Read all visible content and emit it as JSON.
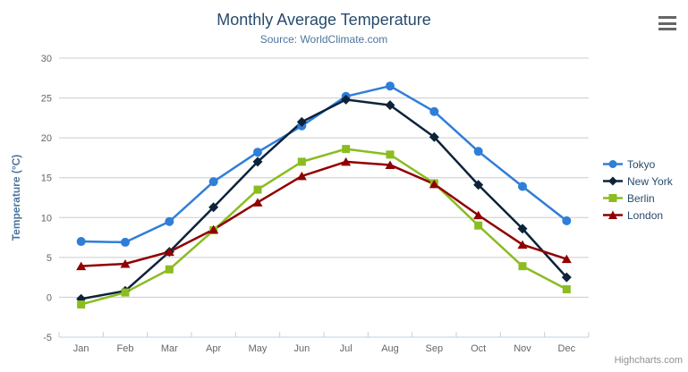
{
  "chart_data": {
    "type": "line",
    "title": "Monthly Average Temperature",
    "subtitle": "Source: WorldClimate.com",
    "xlabel": "",
    "ylabel": "Temperature (°C)",
    "categories": [
      "Jan",
      "Feb",
      "Mar",
      "Apr",
      "May",
      "Jun",
      "Jul",
      "Aug",
      "Sep",
      "Oct",
      "Nov",
      "Dec"
    ],
    "ylim": [
      -5,
      30
    ],
    "y_ticks": [
      -5,
      0,
      5,
      10,
      15,
      20,
      25,
      30
    ],
    "grid": "horizontal",
    "legend_position": "right",
    "series": [
      {
        "name": "Tokyo",
        "color": "#2f7ed8",
        "marker": "circle",
        "values": [
          7.0,
          6.9,
          9.5,
          14.5,
          18.2,
          21.5,
          25.2,
          26.5,
          23.3,
          18.3,
          13.9,
          9.6
        ]
      },
      {
        "name": "New York",
        "color": "#0d233a",
        "marker": "diamond",
        "values": [
          -0.2,
          0.8,
          5.7,
          11.3,
          17.0,
          22.0,
          24.8,
          24.1,
          20.1,
          14.1,
          8.6,
          2.5
        ]
      },
      {
        "name": "Berlin",
        "color": "#8bbc21",
        "marker": "square",
        "values": [
          -0.9,
          0.6,
          3.5,
          8.4,
          13.5,
          17.0,
          18.6,
          17.9,
          14.3,
          9.0,
          3.9,
          1.0
        ]
      },
      {
        "name": "London",
        "color": "#910000",
        "marker": "triangle",
        "values": [
          3.9,
          4.2,
          5.7,
          8.5,
          11.9,
          15.2,
          17.0,
          16.6,
          14.2,
          10.3,
          6.6,
          4.8
        ]
      }
    ]
  },
  "credit": "Highcharts.com",
  "icons": {
    "menu": "hamburger-icon"
  },
  "colors": {
    "title": "#274b6d",
    "subtitle": "#4d759e",
    "axis_title": "#4d759e",
    "tick_label": "#666666",
    "legend_text": "#274b6d",
    "grid_line": "#cccccc",
    "axis_line": "#c0d0e0",
    "menu_icon": "#666666",
    "credit": "#909090",
    "background": "#ffffff"
  }
}
